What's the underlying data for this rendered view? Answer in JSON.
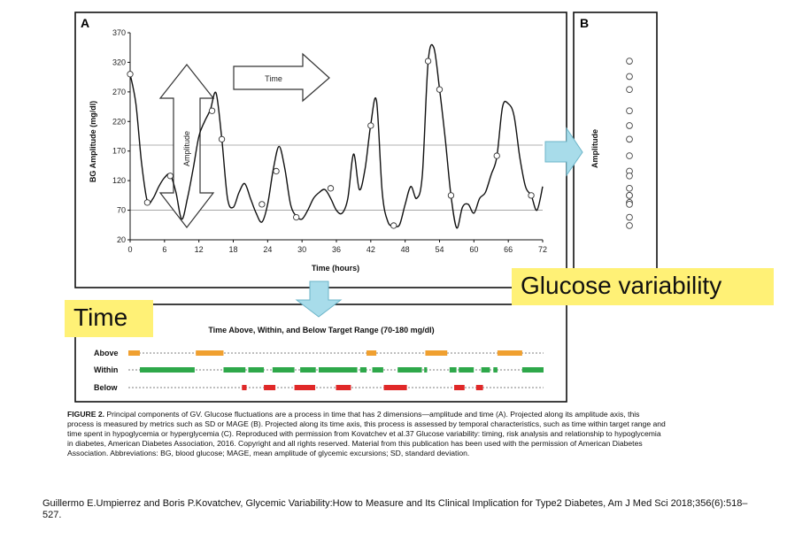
{
  "panel_a_letter": "A",
  "panel_b_letter": "B",
  "arrow_labels": {
    "amplitude": "Amplitude",
    "time": "Time",
    "panel_b_axis": "Amplitude"
  },
  "callouts": {
    "glucose_variability": "Glucose variability",
    "time": "Time"
  },
  "caption": {
    "label": "FIGURE 2.",
    "text": "Principal components of GV. Glucose fluctuations are a process in time that has 2 dimensions—amplitude and time (A). Projected along its amplitude axis, this process is measured by metrics such as SD or MAGE (B). Projected along its time axis, this process is assessed by temporal characteristics, such as time within target range and time spent in hypoglycemia or hyperglycemia (C). Reproduced with permission from Kovatchev et al.37 Glucose variability: timing, risk analysis and relationship to hypoglycemia in diabetes, American Diabetes Association, 2016. Copyright and all rights reserved. Material from this publication has been used with the permission of American Diabetes Association. Abbreviations: BG, blood glucose; MAGE, mean amplitude of glycemic excursions; SD, standard deviation."
  },
  "citation": "Guillermo E.Umpierrez and Boris P.Kovatchev, Glycemic Variability:How to Measure and Its Clinical Implication for Type2 Diabetes, Am J Med Sci 2018;356(6):518–527.",
  "colors": {
    "above": "#f0a030",
    "within": "#2ea84a",
    "below": "#e02828",
    "arrow_fill": "#a8dcea",
    "arrow_stroke": "#6bb4c8",
    "callout_bg": "#fff176"
  },
  "chart_data": [
    {
      "type": "line",
      "xlabel": "Time (hours)",
      "ylabel": "BG Amplitude (mg/dl)",
      "xlim": [
        0,
        72
      ],
      "ylim": [
        20,
        370
      ],
      "x_ticks": [
        0,
        6,
        12,
        18,
        24,
        30,
        36,
        42,
        48,
        54,
        60,
        66,
        72
      ],
      "y_ticks": [
        20,
        70,
        120,
        170,
        220,
        270,
        320,
        370
      ],
      "target_range_lines": [
        70,
        180
      ],
      "series": [
        {
          "x": [
            0,
            1,
            2,
            3,
            4,
            5,
            6,
            7,
            8,
            9,
            10,
            11,
            12,
            13,
            14,
            15,
            16,
            17,
            18,
            19,
            20,
            21,
            22,
            23,
            24,
            25,
            26,
            27,
            28,
            29,
            30,
            31,
            32,
            33,
            34,
            35,
            36,
            37,
            38,
            39,
            40,
            41,
            42,
            43,
            44,
            45,
            46,
            47,
            48,
            49,
            50,
            51,
            52,
            53,
            54,
            55,
            56,
            57,
            58,
            59,
            60,
            61,
            62,
            63,
            64,
            65,
            66,
            67,
            68,
            69,
            70,
            71,
            72
          ],
          "y": [
            300,
            250,
            150,
            85,
            90,
            110,
            125,
            130,
            100,
            55,
            90,
            140,
            195,
            220,
            240,
            268,
            190,
            90,
            75,
            100,
            115,
            90,
            65,
            50,
            80,
            140,
            178,
            140,
            80,
            60,
            55,
            70,
            90,
            100,
            105,
            90,
            70,
            65,
            90,
            165,
            105,
            140,
            215,
            255,
            100,
            50,
            45,
            45,
            80,
            110,
            90,
            130,
            320,
            345,
            275,
            190,
            95,
            40,
            75,
            80,
            65,
            90,
            100,
            130,
            160,
            245,
            250,
            230,
            160,
            110,
            95,
            70,
            110
          ]
        }
      ],
      "markers": [
        {
          "x": 0,
          "y": 300
        },
        {
          "x": 3,
          "y": 83
        },
        {
          "x": 7,
          "y": 128
        },
        {
          "x": 14.3,
          "y": 238
        },
        {
          "x": 16,
          "y": 190
        },
        {
          "x": 23,
          "y": 80
        },
        {
          "x": 25.5,
          "y": 136
        },
        {
          "x": 29,
          "y": 58
        },
        {
          "x": 35,
          "y": 107
        },
        {
          "x": 42,
          "y": 213
        },
        {
          "x": 46,
          "y": 44
        },
        {
          "x": 52,
          "y": 322
        },
        {
          "x": 54,
          "y": 274
        },
        {
          "x": 56,
          "y": 95
        },
        {
          "x": 64,
          "y": 162
        },
        {
          "x": 70,
          "y": 95
        }
      ]
    },
    {
      "type": "scatter",
      "ylabel": "Amplitude",
      "values": [
        322,
        296,
        274,
        238,
        213,
        190,
        162,
        136,
        128,
        107,
        95,
        95,
        83,
        80,
        58,
        44
      ]
    },
    {
      "type": "timeline",
      "title": "Time Above, Within, and Below Target Range (70-180 mg/dl)",
      "xlim": [
        0,
        72
      ],
      "rows": [
        {
          "label": "Above",
          "color_key": "above",
          "segments": [
            [
              0,
              2
            ],
            [
              11.7,
              16.5
            ],
            [
              41.3,
              43
            ],
            [
              51.5,
              55.3
            ],
            [
              64,
              68.3
            ]
          ]
        },
        {
          "label": "Within",
          "color_key": "within",
          "segments": [
            [
              2,
              11.5
            ],
            [
              16.5,
              20.3
            ],
            [
              20.8,
              23.5
            ],
            [
              25,
              28.8
            ],
            [
              29.8,
              32.5
            ],
            [
              33,
              39.7
            ],
            [
              40.2,
              41.3
            ],
            [
              42.3,
              44.2
            ],
            [
              46.7,
              50.9
            ],
            [
              51.3,
              51.8
            ],
            [
              55.7,
              56.9
            ],
            [
              57.3,
              59.9
            ],
            [
              61.2,
              62.7
            ],
            [
              63.3,
              64
            ],
            [
              68.3,
              72
            ]
          ]
        },
        {
          "label": "Below",
          "color_key": "below",
          "segments": [
            [
              19.7,
              20.5
            ],
            [
              23.5,
              25.5
            ],
            [
              28.8,
              32.4
            ],
            [
              36,
              38.6
            ],
            [
              44.3,
              48.3
            ],
            [
              56.5,
              58.3
            ],
            [
              60.3,
              61.5
            ]
          ]
        }
      ]
    }
  ]
}
